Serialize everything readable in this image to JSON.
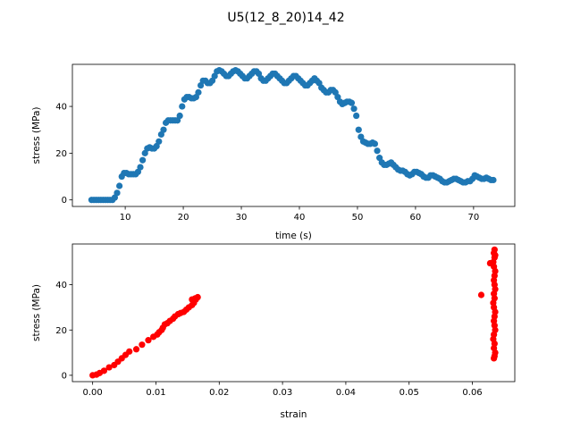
{
  "figure": {
    "title": "U5(12_8_20)14_42"
  },
  "chart_data": [
    {
      "type": "scatter",
      "title": "",
      "xlabel": "time (s)",
      "ylabel": "stress (MPa)",
      "xlim": [
        0.9,
        77.1
      ],
      "ylim": [
        -2.8,
        58.0
      ],
      "xticks": [
        10,
        20,
        30,
        40,
        50,
        60,
        70
      ],
      "xtick_labels": [
        "10",
        "20",
        "30",
        "40",
        "50",
        "60",
        "70"
      ],
      "yticks": [
        0,
        20,
        40
      ],
      "ytick_labels": [
        "0",
        "20",
        "40"
      ],
      "grid": false,
      "legend": "none",
      "series": [
        {
          "color": "#1f77b4",
          "marker": "circle",
          "x": [
            4.2,
            4.6,
            5.0,
            5.4,
            5.8,
            6.2,
            6.6,
            7.0,
            7.4,
            7.8,
            8.2,
            8.6,
            9.0,
            9.4,
            9.8,
            10.2,
            10.6,
            11.0,
            11.4,
            11.8,
            12.2,
            12.6,
            13.0,
            13.4,
            13.8,
            14.2,
            14.6,
            15.0,
            15.4,
            15.8,
            16.2,
            16.6,
            17.0,
            17.4,
            17.8,
            18.2,
            18.6,
            19.0,
            19.4,
            19.8,
            20.2,
            20.6,
            21.0,
            21.4,
            21.8,
            22.2,
            22.6,
            23.0,
            23.4,
            23.8,
            24.2,
            24.6,
            25.0,
            25.4,
            25.8,
            26.2,
            26.6,
            27.0,
            27.4,
            27.8,
            28.2,
            28.6,
            29.0,
            29.4,
            29.8,
            30.2,
            30.6,
            31.0,
            31.4,
            31.8,
            32.2,
            32.6,
            33.0,
            33.4,
            33.8,
            34.2,
            34.6,
            35.0,
            35.4,
            35.8,
            36.2,
            36.6,
            37.0,
            37.4,
            37.8,
            38.2,
            38.6,
            39.0,
            39.4,
            39.8,
            40.2,
            40.6,
            41.0,
            41.4,
            41.8,
            42.2,
            42.6,
            43.0,
            43.4,
            43.8,
            44.2,
            44.6,
            45.0,
            45.4,
            45.8,
            46.2,
            46.6,
            47.0,
            47.4,
            47.8,
            48.2,
            48.6,
            49.0,
            49.4,
            49.8,
            50.2,
            50.6,
            51.0,
            51.4,
            51.8,
            52.2,
            52.6,
            53.0,
            53.4,
            53.8,
            54.2,
            54.6,
            55.0,
            55.4,
            55.8,
            56.2,
            56.6,
            57.0,
            57.4,
            57.8,
            58.2,
            58.6,
            59.0,
            59.4,
            59.8,
            60.2,
            60.6,
            61.0,
            61.4,
            61.8,
            62.2,
            62.6,
            63.0,
            63.4,
            63.8,
            64.2,
            64.6,
            65.0,
            65.4,
            65.8,
            66.2,
            66.6,
            67.0,
            67.4,
            67.8,
            68.2,
            68.6,
            69.0,
            69.4,
            69.8,
            70.2,
            70.6,
            71.0,
            71.4,
            71.8,
            72.2,
            72.6,
            73.0,
            73.4
          ],
          "y": [
            0,
            0,
            0,
            0,
            0,
            0,
            0,
            0,
            0,
            0,
            1,
            3,
            6,
            10,
            11.5,
            11.5,
            11,
            11,
            11,
            11,
            12,
            14,
            17,
            20,
            22,
            22.5,
            22,
            22,
            23,
            25,
            28,
            30,
            33,
            34,
            34,
            34,
            34,
            34,
            36,
            40,
            43,
            44,
            44,
            43.5,
            43.5,
            44,
            46,
            49,
            51,
            51,
            50,
            50,
            51,
            53,
            55,
            55.5,
            55,
            54,
            53,
            53,
            54,
            55,
            55.5,
            55,
            54,
            53,
            52,
            52,
            53,
            54,
            55,
            55,
            54,
            52,
            51,
            51,
            52,
            53,
            54,
            54,
            53,
            52,
            51,
            50,
            50,
            51,
            52,
            53,
            53,
            52,
            51,
            50,
            49,
            49,
            50,
            51,
            52,
            51,
            50,
            48,
            47,
            46,
            46,
            47,
            47,
            46,
            44,
            42,
            41,
            41.5,
            42,
            42,
            41.5,
            39,
            36,
            30,
            27,
            25,
            24.5,
            24,
            24,
            24.5,
            24,
            21,
            18,
            16,
            15,
            15,
            15.5,
            16,
            15,
            14,
            13,
            12.5,
            12.5,
            12,
            11,
            10.5,
            11,
            12,
            12,
            11.5,
            11,
            10,
            9.5,
            9.5,
            10.5,
            10.5,
            10,
            9.5,
            9,
            8,
            7.5,
            7.5,
            8,
            8.5,
            9,
            9,
            8.5,
            8,
            7.5,
            7.5,
            8,
            8,
            9,
            10.5,
            10,
            9.5,
            9,
            9,
            9.5,
            9,
            8.5,
            8.5
          ]
        }
      ]
    },
    {
      "type": "scatter",
      "title": "",
      "xlabel": "strain",
      "ylabel": "stress (MPa)",
      "xlim": [
        -0.0032,
        0.0667
      ],
      "ylim": [
        -2.8,
        58.0
      ],
      "xticks": [
        0.0,
        0.01,
        0.02,
        0.03,
        0.04,
        0.05,
        0.06
      ],
      "xtick_labels": [
        "0.00",
        "0.01",
        "0.02",
        "0.03",
        "0.04",
        "0.05",
        "0.06"
      ],
      "yticks": [
        0,
        20,
        40
      ],
      "ytick_labels": [
        "0",
        "20",
        "40"
      ],
      "grid": false,
      "legend": "none",
      "series": [
        {
          "color": "#ff0000",
          "marker": "circle",
          "x": [
            0.0,
            0.0006,
            0.0011,
            0.0018,
            0.0026,
            0.0034,
            0.004,
            0.0046,
            0.0052,
            0.0058,
            0.0069,
            0.0078,
            0.0088,
            0.0096,
            0.0102,
            0.0105,
            0.0109,
            0.0111,
            0.0114,
            0.0118,
            0.0122,
            0.0127,
            0.013,
            0.0135,
            0.0139,
            0.0144,
            0.0148,
            0.0152,
            0.0157,
            0.016,
            0.0163,
            0.0166,
            0.0157,
            0.0162,
            0.0614,
            0.0628,
            0.0635,
            0.0634,
            0.0636,
            0.0635,
            0.0633,
            0.0634,
            0.0636,
            0.0635,
            0.0634,
            0.0635,
            0.0636,
            0.0634,
            0.0635,
            0.0633,
            0.0634,
            0.0636,
            0.0635,
            0.0634,
            0.0635,
            0.0636,
            0.0634,
            0.0633,
            0.0635,
            0.0634,
            0.0636,
            0.0635,
            0.0634
          ],
          "y": [
            0,
            0.3,
            1,
            2,
            3.5,
            4.5,
            6,
            7.5,
            9,
            10.5,
            11.5,
            13.5,
            15.5,
            17,
            18,
            19,
            20,
            21,
            22.5,
            23,
            24,
            25,
            26,
            27,
            27.5,
            28,
            29,
            30,
            31,
            32,
            33.5,
            34.5,
            33.5,
            34,
            35.5,
            49.5,
            55.5,
            54,
            53,
            52,
            50,
            48,
            46,
            44,
            42,
            40,
            38,
            36,
            34,
            32,
            30,
            28,
            26,
            24,
            22,
            20,
            18,
            16,
            14,
            12,
            10,
            8.5,
            7.5
          ]
        }
      ]
    }
  ]
}
